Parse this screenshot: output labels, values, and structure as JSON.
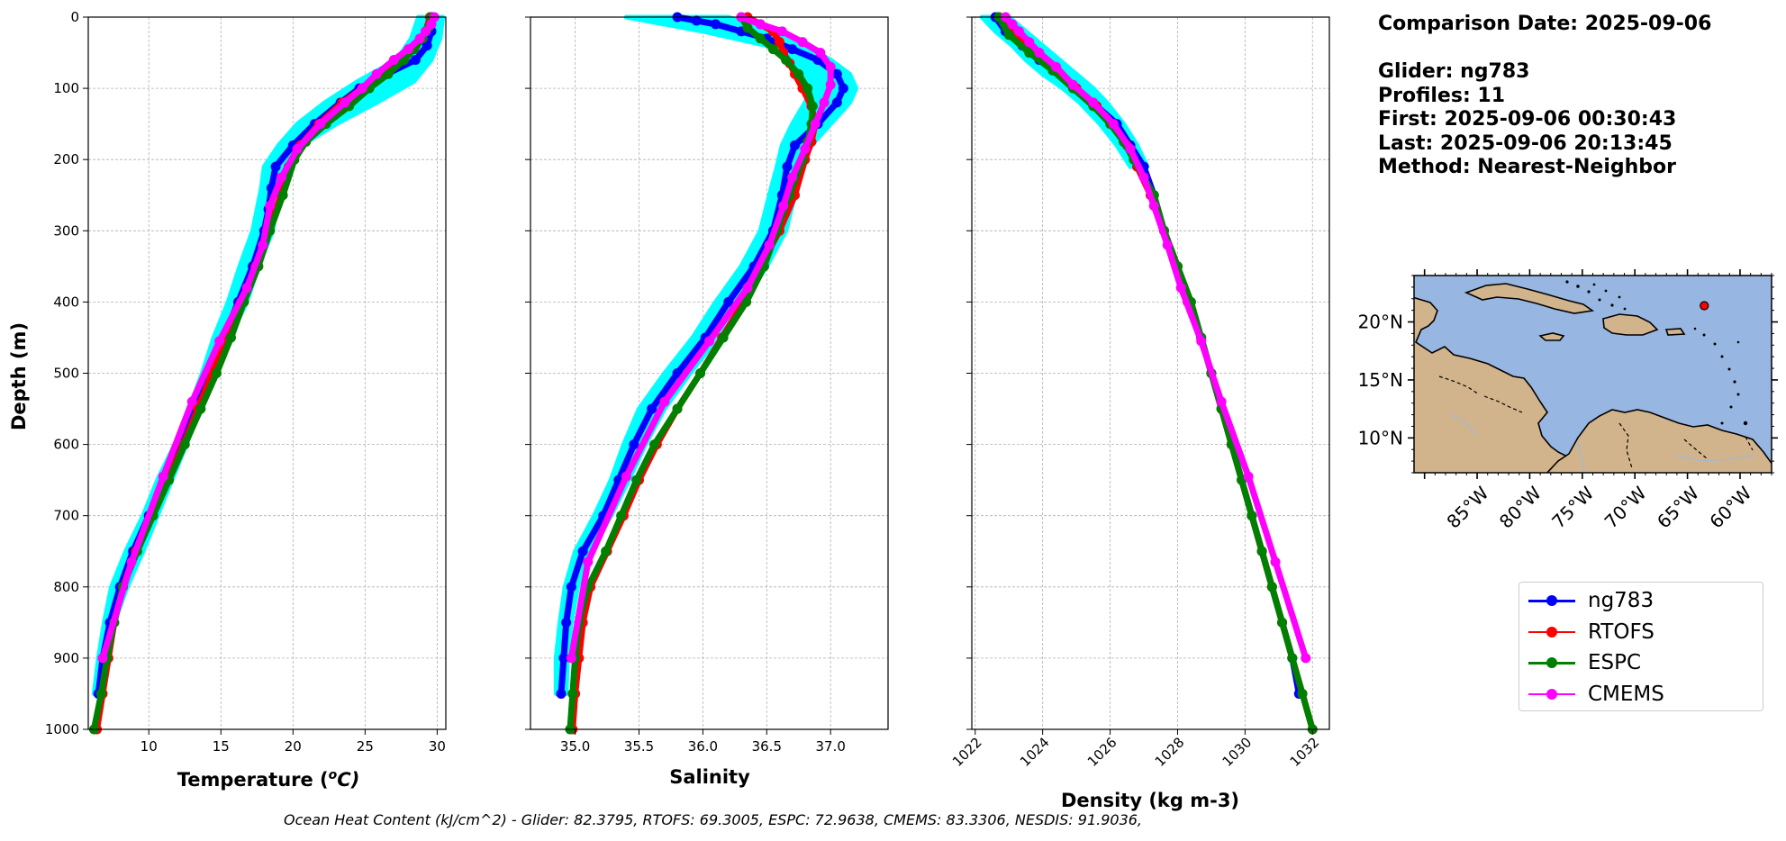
{
  "chart_data": [
    {
      "type": "line",
      "xlabel": "Temperature ($^{o}C$)",
      "xlabel_text": "Temperature (",
      "xlabel_sup": "o",
      "xlabel_tail": "C)",
      "ylabel": "Depth (m)",
      "xlim": [
        5.8,
        30.6
      ],
      "ylim": [
        1000,
        0
      ],
      "xticks": [
        10,
        15,
        20,
        25,
        30
      ],
      "yticks": [
        0,
        100,
        200,
        300,
        400,
        500,
        600,
        700,
        800,
        900,
        1000
      ],
      "grid": true,
      "shading": {
        "color": "#00ffff",
        "depth": [
          0,
          30,
          60,
          90,
          120,
          150,
          180,
          210,
          240,
          270,
          300,
          350,
          400,
          450,
          500,
          550,
          600,
          650,
          700,
          750,
          800,
          850,
          900,
          950
        ],
        "min": [
          28.7,
          28.2,
          27.2,
          24.5,
          22.2,
          20.3,
          19.0,
          18.0,
          17.8,
          17.5,
          17.2,
          16.3,
          15.5,
          14.5,
          13.7,
          12.8,
          11.8,
          10.6,
          9.6,
          8.4,
          7.4,
          6.9,
          6.5,
          6.2
        ],
        "max": [
          30.4,
          30.2,
          29.6,
          28.4,
          25.8,
          23.0,
          20.6,
          19.4,
          19.0,
          18.8,
          18.6,
          17.6,
          16.8,
          15.6,
          14.6,
          13.6,
          12.6,
          11.6,
          10.6,
          9.6,
          8.5,
          7.6,
          7.0,
          6.7
        ]
      },
      "series": [
        {
          "name": "ng783",
          "color": "#0000ff",
          "depth": [
            0,
            20,
            40,
            60,
            80,
            100,
            120,
            150,
            180,
            210,
            240,
            270,
            300,
            350,
            400,
            450,
            500,
            550,
            600,
            650,
            700,
            750,
            800,
            850,
            900,
            950
          ],
          "values": [
            29.7,
            29.6,
            29.3,
            28.5,
            26.5,
            24.6,
            23.3,
            21.5,
            20.0,
            18.8,
            18.5,
            18.3,
            18.0,
            17.2,
            16.2,
            15.2,
            14.2,
            13.2,
            12.2,
            11.1,
            10.0,
            8.9,
            8.0,
            7.3,
            6.8,
            6.5
          ]
        },
        {
          "name": "RTOFS",
          "color": "#ff0000",
          "depth": [
            0,
            20,
            40,
            60,
            80,
            100,
            120,
            150,
            180,
            210,
            250,
            300,
            350,
            400,
            450,
            500,
            550,
            600,
            650,
            700,
            750,
            800,
            850,
            900,
            950,
            1000
          ],
          "values": [
            29.5,
            29.2,
            28.5,
            27.5,
            26.2,
            24.8,
            23.4,
            21.8,
            20.5,
            19.7,
            19.2,
            18.2,
            17.4,
            16.4,
            15.4,
            14.4,
            13.4,
            12.4,
            11.3,
            10.2,
            9.1,
            8.2,
            7.6,
            7.2,
            6.8,
            6.4
          ]
        },
        {
          "name": "ESPC",
          "color": "#008000",
          "depth": [
            0,
            15,
            30,
            45,
            60,
            80,
            100,
            125,
            150,
            175,
            200,
            250,
            300,
            350,
            400,
            450,
            500,
            550,
            600,
            650,
            700,
            750,
            800,
            850,
            900,
            950,
            1000
          ],
          "values": [
            29.6,
            29.4,
            29.0,
            28.4,
            27.7,
            26.6,
            25.3,
            23.9,
            22.3,
            20.9,
            20.1,
            19.3,
            18.4,
            17.6,
            16.6,
            15.7,
            14.7,
            13.6,
            12.5,
            11.4,
            10.3,
            9.2,
            8.2,
            7.6,
            7.1,
            6.7,
            6.2
          ]
        },
        {
          "name": "CMEMS",
          "color": "#ff00ff",
          "depth": [
            0,
            10,
            20,
            30,
            45,
            60,
            80,
            100,
            120,
            150,
            185,
            225,
            265,
            320,
            380,
            455,
            540,
            645,
            765,
            900
          ],
          "values": [
            29.8,
            29.6,
            29.2,
            28.8,
            28.0,
            27.0,
            25.8,
            24.8,
            23.6,
            21.9,
            20.3,
            19.2,
            18.4,
            17.9,
            16.8,
            14.9,
            13.0,
            11.0,
            8.8,
            6.8
          ]
        }
      ]
    },
    {
      "type": "line",
      "xlabel": "Salinity",
      "xlim": [
        34.65,
        37.45
      ],
      "ylim": [
        1000,
        0
      ],
      "xticks": [
        "35.0",
        "35.5",
        "36.0",
        "36.5",
        "37.0"
      ],
      "grid": true,
      "shading": {
        "color": "#00ffff",
        "depth": [
          0,
          20,
          40,
          60,
          80,
          100,
          120,
          150,
          180,
          210,
          250,
          300,
          350,
          400,
          450,
          500,
          550,
          600,
          650,
          700,
          750,
          800,
          850,
          900,
          950
        ],
        "min": [
          35.4,
          36.0,
          36.5,
          36.7,
          36.8,
          36.85,
          36.8,
          36.7,
          36.62,
          36.58,
          36.52,
          36.45,
          36.3,
          36.1,
          35.92,
          35.7,
          35.5,
          35.38,
          35.28,
          35.15,
          35.0,
          34.92,
          34.88,
          34.85,
          34.85
        ],
        "max": [
          36.2,
          36.5,
          36.8,
          37.0,
          37.15,
          37.2,
          37.15,
          37.0,
          36.85,
          36.78,
          36.72,
          36.65,
          36.5,
          36.32,
          36.12,
          35.9,
          35.7,
          35.55,
          35.42,
          35.28,
          35.12,
          35.02,
          34.97,
          34.94,
          34.93
        ]
      },
      "series": [
        {
          "name": "ng783",
          "color": "#0000ff",
          "depth": [
            0,
            5,
            10,
            20,
            30,
            45,
            60,
            80,
            100,
            120,
            150,
            180,
            210,
            250,
            300,
            350,
            400,
            450,
            500,
            550,
            600,
            650,
            700,
            750,
            800,
            850,
            900,
            950
          ],
          "values": [
            35.8,
            35.95,
            36.1,
            36.3,
            36.5,
            36.7,
            36.9,
            37.05,
            37.1,
            37.05,
            36.9,
            36.72,
            36.66,
            36.62,
            36.55,
            36.4,
            36.2,
            36.02,
            35.8,
            35.6,
            35.46,
            35.34,
            35.22,
            35.06,
            34.97,
            34.93,
            34.91,
            34.89
          ]
        },
        {
          "name": "RTOFS",
          "color": "#ff0000",
          "depth": [
            0,
            10,
            20,
            35,
            50,
            65,
            80,
            100,
            125,
            150,
            175,
            200,
            250,
            300,
            350,
            400,
            450,
            500,
            550,
            600,
            650,
            700,
            750,
            800,
            850,
            900,
            950,
            1000
          ],
          "values": [
            36.35,
            36.45,
            36.55,
            36.6,
            36.63,
            36.68,
            36.72,
            36.78,
            36.85,
            36.88,
            36.85,
            36.8,
            36.72,
            36.6,
            36.45,
            36.32,
            36.15,
            35.98,
            35.8,
            35.64,
            35.5,
            35.38,
            35.25,
            35.12,
            35.06,
            35.03,
            35.0,
            34.98
          ]
        },
        {
          "name": "ESPC",
          "color": "#008000",
          "depth": [
            0,
            15,
            30,
            45,
            60,
            80,
            100,
            125,
            150,
            175,
            200,
            250,
            300,
            350,
            400,
            450,
            500,
            550,
            600,
            650,
            700,
            750,
            800,
            850,
            900,
            950,
            1000
          ],
          "values": [
            36.3,
            36.35,
            36.45,
            36.55,
            36.65,
            36.75,
            36.82,
            36.86,
            36.85,
            36.82,
            36.78,
            36.68,
            36.58,
            36.48,
            36.34,
            36.16,
            35.98,
            35.8,
            35.62,
            35.48,
            35.36,
            35.24,
            35.1,
            35.03,
            35.0,
            34.98,
            34.96
          ]
        },
        {
          "name": "CMEMS",
          "color": "#ff00ff",
          "depth": [
            0,
            10,
            20,
            35,
            50,
            70,
            95,
            120,
            150,
            185,
            225,
            265,
            320,
            380,
            455,
            540,
            645,
            765,
            900
          ],
          "values": [
            36.3,
            36.45,
            36.62,
            36.78,
            36.92,
            37.0,
            37.0,
            36.95,
            36.88,
            36.8,
            36.7,
            36.63,
            36.52,
            36.35,
            36.05,
            35.7,
            35.4,
            35.1,
            34.97
          ]
        }
      ]
    },
    {
      "type": "line",
      "xlabel": "Density (kg m-3)",
      "xlim": [
        1021.9,
        1032.5
      ],
      "ylim": [
        1000,
        0
      ],
      "xticks": [
        1022,
        1024,
        1026,
        1028,
        1030,
        1032
      ],
      "grid": true,
      "shading": {
        "color": "#00ffff",
        "depth": [
          0,
          20,
          40,
          60,
          80,
          100,
          120,
          150,
          180,
          210
        ],
        "min": [
          1022.2,
          1022.6,
          1023.1,
          1023.5,
          1024.0,
          1024.6,
          1025.1,
          1025.7,
          1026.2,
          1026.6
        ],
        "max": [
          1023.0,
          1023.5,
          1024.0,
          1024.5,
          1025.0,
          1025.5,
          1025.9,
          1026.4,
          1026.8,
          1027.1
        ]
      },
      "series": [
        {
          "name": "ng783",
          "color": "#0000ff",
          "depth": [
            0,
            20,
            40,
            60,
            80,
            100,
            125,
            150,
            180,
            210,
            250,
            300,
            350,
            400,
            450,
            500,
            550,
            600,
            650,
            700,
            750,
            800,
            850,
            900,
            950
          ],
          "values": [
            1022.6,
            1022.9,
            1023.4,
            1023.9,
            1024.5,
            1025.0,
            1025.6,
            1026.2,
            1026.6,
            1027.0,
            1027.3,
            1027.6,
            1028.0,
            1028.3,
            1028.7,
            1029.0,
            1029.3,
            1029.6,
            1029.9,
            1030.2,
            1030.5,
            1030.8,
            1031.1,
            1031.4,
            1031.6
          ]
        },
        {
          "name": "RTOFS",
          "color": "#ff0000",
          "depth": [
            0,
            20,
            40,
            60,
            80,
            100,
            125,
            150,
            180,
            210,
            250,
            300,
            350,
            400,
            450,
            500,
            550,
            600,
            650,
            700,
            750,
            800,
            850,
            900,
            950,
            1000
          ],
          "values": [
            1022.7,
            1023.0,
            1023.5,
            1024.0,
            1024.5,
            1025.0,
            1025.6,
            1026.1,
            1026.5,
            1026.8,
            1027.2,
            1027.6,
            1028.0,
            1028.3,
            1028.7,
            1029.0,
            1029.3,
            1029.6,
            1029.9,
            1030.2,
            1030.5,
            1030.8,
            1031.1,
            1031.4,
            1031.7,
            1032.0
          ]
        },
        {
          "name": "ESPC",
          "color": "#008000",
          "depth": [
            0,
            25,
            50,
            75,
            100,
            125,
            150,
            175,
            200,
            250,
            300,
            350,
            400,
            450,
            500,
            550,
            600,
            650,
            700,
            750,
            800,
            850,
            900,
            950,
            1000
          ],
          "values": [
            1022.7,
            1023.0,
            1023.6,
            1024.3,
            1024.9,
            1025.5,
            1026.0,
            1026.4,
            1026.7,
            1027.3,
            1027.6,
            1028.0,
            1028.4,
            1028.7,
            1029.0,
            1029.3,
            1029.6,
            1029.9,
            1030.2,
            1030.5,
            1030.8,
            1031.1,
            1031.4,
            1031.7,
            1032.0
          ]
        },
        {
          "name": "CMEMS",
          "color": "#ff00ff",
          "depth": [
            0,
            10,
            20,
            35,
            50,
            70,
            95,
            120,
            150,
            185,
            225,
            265,
            320,
            380,
            455,
            540,
            645,
            765,
            900
          ],
          "values": [
            1022.9,
            1023.1,
            1023.3,
            1023.6,
            1023.9,
            1024.4,
            1024.9,
            1025.5,
            1026.1,
            1026.6,
            1027.0,
            1027.3,
            1027.7,
            1028.1,
            1028.7,
            1029.3,
            1030.1,
            1030.9,
            1031.8
          ]
        }
      ]
    }
  ],
  "info": {
    "comparison_date": "Comparison Date: 2025-09-06",
    "glider": "Glider: ng783",
    "profiles": "Profiles: 11",
    "first": "First: 2025-09-06 00:30:43",
    "last": "Last: 2025-09-06 20:13:45",
    "method": "Method: Nearest-Neighbor"
  },
  "map": {
    "lat_range": [
      7,
      24
    ],
    "lon_range": [
      -91,
      -57
    ],
    "lat_labels": [
      "20°N",
      "15°N",
      "10°N"
    ],
    "lon_labels": [
      "85°W",
      "80°W",
      "75°W",
      "70°W",
      "65°W",
      "60°W"
    ],
    "glider_position": {
      "lon": -63.4,
      "lat": 21.4
    },
    "ocean_color": "#97b6e1",
    "land_color": "#d2b48c",
    "marker_color": "#ff0000"
  },
  "legend": [
    {
      "label": "ng783",
      "color": "#0000ff"
    },
    {
      "label": "RTOFS",
      "color": "#ff0000"
    },
    {
      "label": "ESPC",
      "color": "#008000"
    },
    {
      "label": "CMEMS",
      "color": "#ff00ff"
    }
  ],
  "footer": {
    "ohc_text": "Ocean Heat Content (kJ/cm^2) - Glider: 82.3795,  RTOFS: 69.3005,  ESPC: 72.9638,  CMEMS: 83.3306,  NESDIS: 91.9036,"
  }
}
